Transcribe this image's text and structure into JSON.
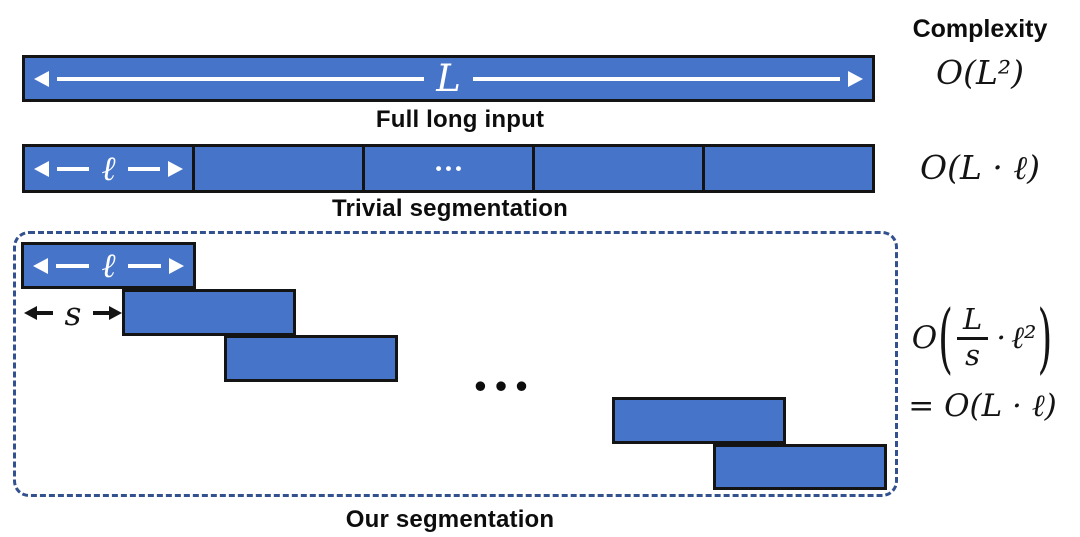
{
  "colors": {
    "bar_blue": "#4674C9",
    "outline_black": "#141414",
    "dashed_border_blue": "#33518E",
    "arrow_white": "#ffffff",
    "text_black": "#0d0d0d"
  },
  "complexity_header": "Complexity",
  "row1": {
    "bar_label": "L",
    "caption": "Full long input",
    "complexity": "O(L²)"
  },
  "row2": {
    "bar_label": "ℓ",
    "ellipsis": "•••",
    "caption": "Trivial segmentation",
    "complexity": "O(L · ℓ)"
  },
  "row3": {
    "bar_label": "ℓ",
    "stride_label": "s",
    "ellipsis": "•••",
    "caption": "Our segmentation",
    "complexity": {
      "big_o": "O",
      "open_paren": "(",
      "numerator": "L",
      "denominator": "s",
      "dot": "·",
      "ell_squared": "ℓ²",
      "close_paren": ")",
      "line2": "= O(L · ℓ)"
    }
  }
}
